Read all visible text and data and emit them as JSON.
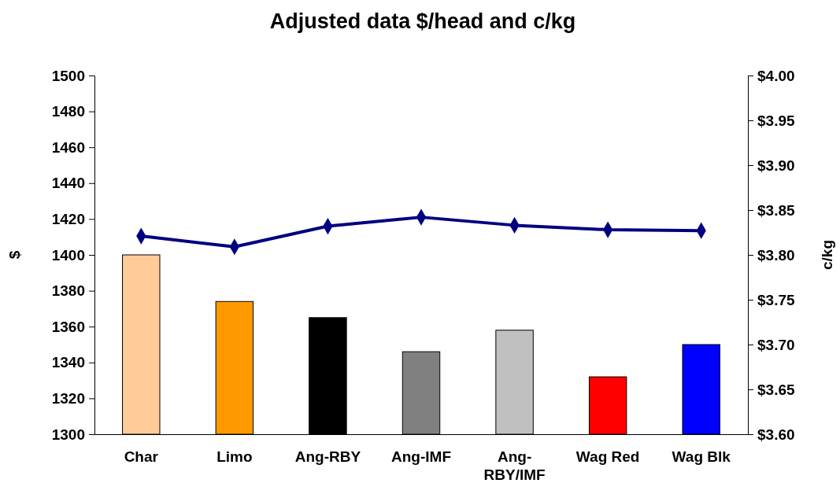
{
  "chart_data": {
    "type": "bar",
    "title": "Adjusted data $/head and c/kg",
    "ylabel": "$",
    "y2label": "c/kg",
    "categories": [
      "Char",
      "Limo",
      "Ang-RBY",
      "Ang-IMF",
      "Ang-RBY/IMF",
      "Wag Red",
      "Wag Blk"
    ],
    "series": [
      {
        "values": [
          1400,
          1374,
          1365,
          1346,
          1358,
          1332,
          1350
        ],
        "colors": [
          "#ffcc99",
          "#ff9900",
          "#000000",
          "#808080",
          "#c0c0c0",
          "#ff0000",
          "#0000ff"
        ]
      },
      {
        "type": "line",
        "axis": "y2",
        "color": "#000080",
        "marker": "diamond",
        "values": [
          3.821,
          3.809,
          3.832,
          3.842,
          3.833,
          3.828,
          3.827
        ]
      }
    ],
    "ylim": [
      1300,
      1500
    ],
    "yticks": [
      1300,
      1320,
      1340,
      1360,
      1380,
      1400,
      1420,
      1440,
      1460,
      1480,
      1500
    ],
    "y2lim": [
      3.6,
      4.0
    ],
    "y2ticks": [
      {
        "value": 3.6,
        "label": "$3.60"
      },
      {
        "value": 3.65,
        "label": "$3.65"
      },
      {
        "value": 3.7,
        "label": "$3.70"
      },
      {
        "value": 3.75,
        "label": "$3.75"
      },
      {
        "value": 3.8,
        "label": "$3.80"
      },
      {
        "value": 3.85,
        "label": "$3.85"
      },
      {
        "value": 3.9,
        "label": "$3.90"
      },
      {
        "value": 3.95,
        "label": "$3.95"
      },
      {
        "value": 4.0,
        "label": "$4.00"
      }
    ],
    "grid": false
  }
}
